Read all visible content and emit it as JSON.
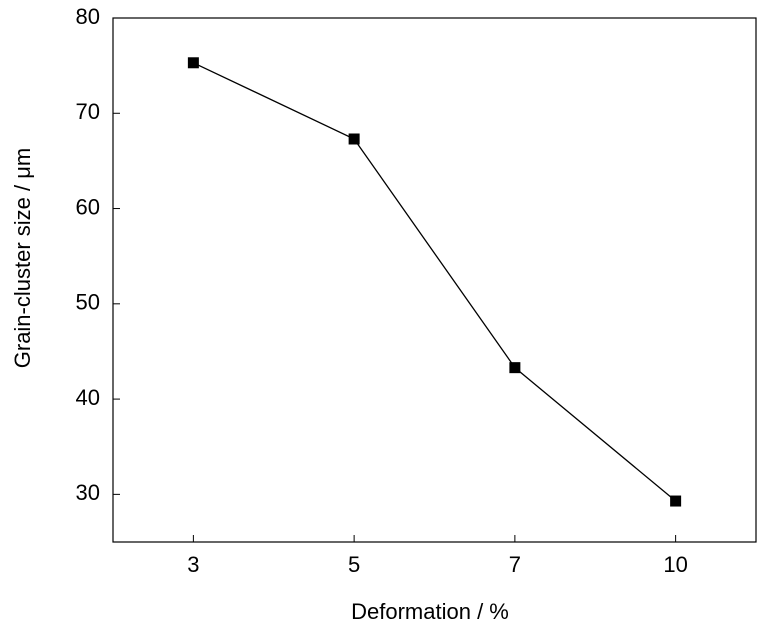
{
  "chart_data": {
    "type": "line",
    "x_label": "Deformation / %",
    "y_label": "Grain-cluster size / μm",
    "categories": [
      "3",
      "5",
      "7",
      "10"
    ],
    "series": [
      {
        "name": "Grain-cluster size",
        "color": "#000000",
        "values": [
          75.3,
          67.3,
          43.3,
          29.3
        ]
      }
    ],
    "ylim": [
      25,
      80
    ],
    "yticks": [
      30,
      40,
      50,
      60,
      70,
      80
    ],
    "grid": false
  }
}
